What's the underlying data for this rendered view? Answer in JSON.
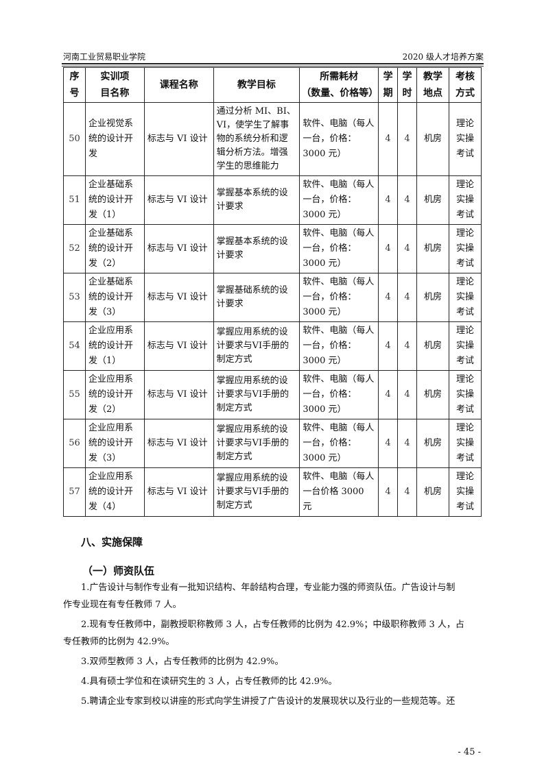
{
  "header": {
    "left": "河南工业贸易职业学院",
    "right": "2020 级人才培养方案"
  },
  "table": {
    "columns": [
      "序号",
      "实训项目名称",
      "课程名称",
      "教学目标",
      "所需耗材（数量、价格等）",
      "学期",
      "学时",
      "教学地点",
      "考核方式"
    ],
    "column_lines": [
      [
        "序",
        "号"
      ],
      [
        "实训项",
        "目名称"
      ],
      [
        "课程名称"
      ],
      [
        "教学目标"
      ],
      [
        "所需耗材",
        "（数量、价格等）"
      ],
      [
        "学",
        "期"
      ],
      [
        "学",
        "时"
      ],
      [
        "教学",
        "地点"
      ],
      [
        "考核",
        "方式"
      ]
    ],
    "rows": [
      {
        "no": "50",
        "project": "企业视觉系统的设计开发",
        "course": "标志与 VI 设计",
        "goal": "通过分析 MI、BI、VI，使学生了解事物的系统分析和逻辑分析方法。增强学生的思维能力",
        "materials": "软件、电脑（每人一台，价格：3000 元）",
        "term": "4",
        "hours": "4",
        "location": "机房",
        "assessment": "理论实操考试"
      },
      {
        "no": "51",
        "project": "企业基础系统的设计开发（1）",
        "course": "标志与 VI 设计",
        "goal": "掌握基本系统的设计要求",
        "materials": "软件、电脑（每人一台，价格：3000 元）",
        "term": "4",
        "hours": "4",
        "location": "机房",
        "assessment": "理论实操考试"
      },
      {
        "no": "52",
        "project": "企业基础系统的设计开发（2）",
        "course": "标志与 VI 设计",
        "goal": "掌握基本系统的设计要求",
        "materials": "软件、电脑（每人一台，价格：3000 元）",
        "term": "4",
        "hours": "4",
        "location": "机房",
        "assessment": "理论实操考试"
      },
      {
        "no": "53",
        "project": "企业基础系统的设计开发（3）",
        "course": "标志与 VI 设计",
        "goal": "掌握基础系统的设计要求",
        "materials": "软件、电脑（每人一台，价格：3000 元）",
        "term": "4",
        "hours": "4",
        "location": "机房",
        "assessment": "理论实操考试"
      },
      {
        "no": "54",
        "project": "企业应用系统的设计开发（1）",
        "course": "标志与 VI 设计",
        "goal": "掌握应用系统的设计要求与VI手册的制定方式",
        "materials": "软件、电脑（每人一台，价格：3000 元）",
        "term": "4",
        "hours": "4",
        "location": "机房",
        "assessment": "理论实操考试"
      },
      {
        "no": "55",
        "project": "企业应用系统的设计开发（2）",
        "course": "标志与 VI 设计",
        "goal": "掌握应用系统的设计要求与VI手册的制定方式",
        "materials": "软件、电脑（每人一台，价格：3000 元）",
        "term": "4",
        "hours": "4",
        "location": "机房",
        "assessment": "理论实操考试"
      },
      {
        "no": "56",
        "project": "企业应用系统的设计开发（3）",
        "course": "标志与 VI 设计",
        "goal": "掌握应用系统的设计要求与VI手册的制定方式",
        "materials": "软件、电脑（每人一台，价格：3000 元）",
        "term": "4",
        "hours": "4",
        "location": "机房",
        "assessment": "理论实操考试"
      },
      {
        "no": "57",
        "project": "企业应用系统的设计开发（4）",
        "course": "标志与 VI 设计",
        "goal": "掌握应用系统的设计要求与VI手册的制定方式",
        "materials": "软件、电脑（每人一台价格 3000 元",
        "term": "4",
        "hours": "4",
        "location": "机房",
        "assessment": "理论实操考试"
      }
    ]
  },
  "section": {
    "title": "八、实施保障",
    "subtitle": "（一）师资队伍",
    "paragraphs": [
      [
        "1.广告设计与制作专业有一批知识结构、年龄结构合理，专业能力强的师资队伍。广告设计与制",
        "作专业现在有专任教师 7 人。"
      ],
      [
        "2.现有专任教师中，副教授职称教师 3 人，占专任教师的比例为 42.9%；中级职称教师 3 人，占",
        "专任教师的比例为 42.9%。"
      ],
      [
        "3.双师型教师 3 人，占专任教师的比例为 42.9%。"
      ],
      [
        "4.具有硕士学位和在读研究生的 3 人，占专任教师的比 42.9%。"
      ],
      [
        "5.聘请企业专家到校以讲座的形式向学生讲授了广告设计的发展现状以及行业的一些规范等。还"
      ]
    ]
  },
  "page_number": "- 45 -"
}
